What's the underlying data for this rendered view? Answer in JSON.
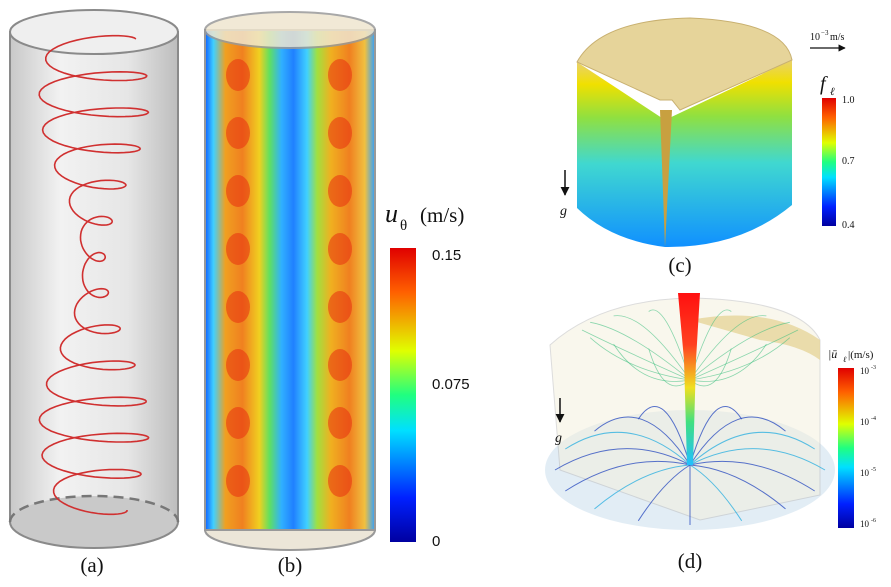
{
  "panels": [
    {
      "label": "(a)"
    },
    {
      "label": "(b)",
      "colorbar": {
        "symbol": "u",
        "subscript": "θ",
        "unit": "(m/s)",
        "tick_labels": [
          "0.15",
          "0.075",
          "0"
        ]
      }
    },
    {
      "label": "(c)",
      "colorbar": {
        "symbol": "f",
        "subscript": "ℓ",
        "tick_labels": [
          "1.0",
          "0.7",
          "0.4"
        ]
      },
      "scale_arrow": {
        "base": "10",
        "exponent": "−3",
        "unit": "m/s"
      },
      "gravity": "g"
    },
    {
      "label": "(d)",
      "colorbar": {
        "symbol": "|ū",
        "subscript": "ℓ",
        "unit": "|(m/s)",
        "tick_labels": [
          {
            "base": "10",
            "exponent": "-3"
          },
          {
            "base": "10",
            "exponent": "-4"
          },
          {
            "base": "10",
            "exponent": "-5"
          },
          {
            "base": "10",
            "exponent": "-6"
          }
        ]
      },
      "gravity": "g"
    }
  ]
}
